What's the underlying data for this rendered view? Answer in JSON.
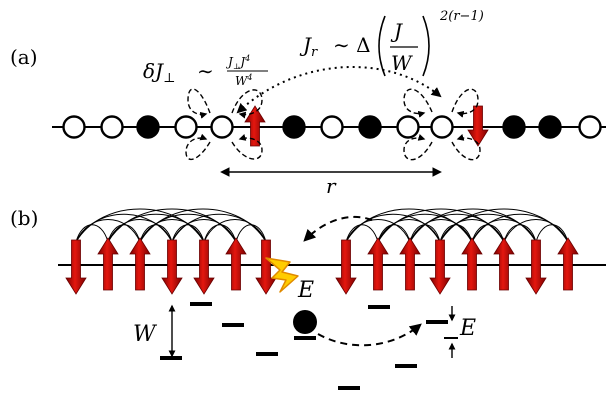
{
  "panel_a": {
    "label": "(a)",
    "coupling_left": {
      "lhs": "δJ",
      "lhs_sub": "⊥",
      "sim": "∼",
      "num": "J",
      "num_sub": "⊥",
      "num_mid": "J",
      "num_sup": "4",
      "den": "W",
      "den_sup": "4"
    },
    "coupling_right": {
      "lhs": "J",
      "lhs_sub": "r",
      "sim": "∼ Δ",
      "frac_num": "J",
      "frac_den": "W",
      "exponent": "2(r−1)"
    },
    "distance_label": "r",
    "sites": [
      "empty",
      "empty",
      "filled",
      "empty",
      "empty",
      "up",
      "filled",
      "empty",
      "filled",
      "empty",
      "empty",
      "down",
      "filled",
      "filled",
      "empty",
      "filled"
    ]
  },
  "panel_b": {
    "label": "(b)",
    "energy_label": "E",
    "disorder_label": "W",
    "gap_label": "E",
    "left_spins": [
      "down",
      "up",
      "up",
      "down",
      "down",
      "up",
      "down"
    ],
    "right_spins": [
      "down",
      "up",
      "up",
      "down",
      "up",
      "up",
      "down",
      "up"
    ]
  },
  "colors": {
    "arrow": "#e0120f",
    "arrow_dark": "#8a0000",
    "bolt": "#ffcc00",
    "bolt_edge": "#e08a00"
  }
}
